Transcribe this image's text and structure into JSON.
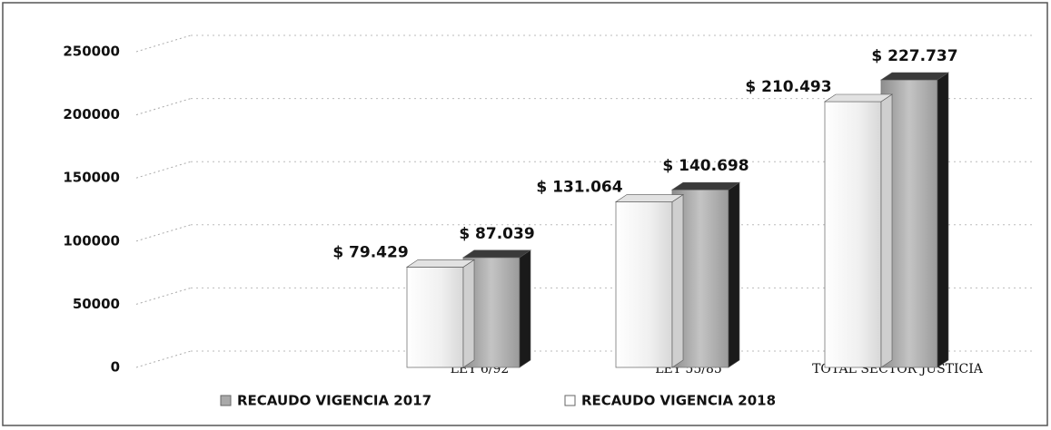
{
  "chart_data": {
    "type": "bar3d",
    "categories": [
      "LEY 6/92",
      "LEY 55/85",
      "TOTAL SECTOR JUSTICIA"
    ],
    "series": [
      {
        "name": "RECAUDO VIGENCIA 2017",
        "color": "#a9a9a9",
        "values": [
          87039,
          140698,
          227737
        ],
        "value_labels": [
          "$ 87.039",
          "$ 140.698",
          "$ 227.737"
        ]
      },
      {
        "name": "RECAUDO VIGENCIA 2018",
        "color": "#ffffff",
        "values": [
          79429,
          131064,
          210493
        ],
        "value_labels": [
          "$ 79.429",
          "$ 131.064",
          "$ 210.493"
        ]
      }
    ],
    "ylim": [
      0,
      250000
    ],
    "yticks": [
      0,
      50000,
      100000,
      150000,
      200000,
      250000
    ],
    "grid": true,
    "legend": "bottom"
  }
}
